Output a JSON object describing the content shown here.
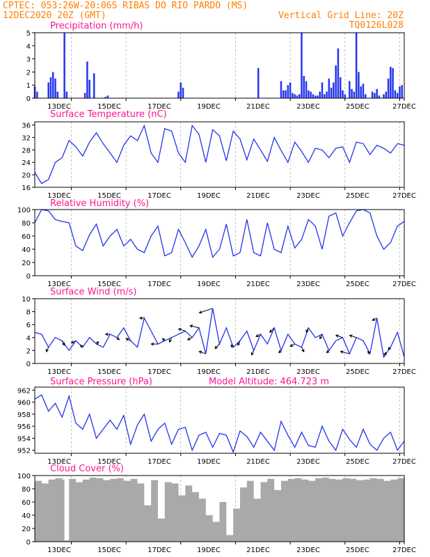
{
  "header": {
    "line1_left": "CPTEC:   053:26W-20:06S  RIBAS DO RIO PARDO (MS)",
    "line2_left": "12DEC2020 20Z (GMT)",
    "line1_right": "Vertical Grid Line: 20Z",
    "line2_right": "TQ0126L028"
  },
  "colors": {
    "series": "#2233ee",
    "cloud": "#a9a9a9",
    "arrows": "#000000",
    "header": "#ff7f00",
    "titles": "#ff1493"
  },
  "x_tick_labels": [
    "13DEC",
    "15DEC",
    "17DEC",
    "19DEC",
    "21DEC",
    "23DEC",
    "25DEC",
    "27DEC"
  ],
  "chart_data": [
    {
      "type": "bar",
      "title": "Precipitation (mm/h)",
      "x_unit": "hours since 12DEC2020 20Z",
      "ylim": [
        0,
        5
      ],
      "yticks": [
        0,
        1,
        2,
        3,
        4,
        5
      ],
      "points": [
        [
          0,
          0.9
        ],
        [
          1,
          0.5
        ],
        [
          6,
          1.2
        ],
        [
          7,
          1.6
        ],
        [
          8,
          2.0
        ],
        [
          9,
          1.5
        ],
        [
          10,
          0.5
        ],
        [
          13,
          5.0
        ],
        [
          14,
          0.5
        ],
        [
          22,
          0.4
        ],
        [
          23,
          2.8
        ],
        [
          24,
          1.4
        ],
        [
          26,
          1.9
        ],
        [
          31,
          0.1
        ],
        [
          32,
          0.2
        ],
        [
          63,
          0.5
        ],
        [
          64,
          1.2
        ],
        [
          65,
          0.8
        ],
        [
          98,
          2.3
        ],
        [
          108,
          1.3
        ],
        [
          109,
          0.6
        ],
        [
          110,
          0.6
        ],
        [
          111,
          1.0
        ],
        [
          112,
          1.2
        ],
        [
          113,
          0.4
        ],
        [
          114,
          0.3
        ],
        [
          115,
          0.2
        ],
        [
          116,
          0.3
        ],
        [
          117,
          5.0
        ],
        [
          118,
          1.7
        ],
        [
          119,
          1.3
        ],
        [
          120,
          0.6
        ],
        [
          121,
          0.5
        ],
        [
          122,
          0.3
        ],
        [
          123,
          0.2
        ],
        [
          124,
          0.2
        ],
        [
          125,
          0.5
        ],
        [
          126,
          1.2
        ],
        [
          127,
          0.3
        ],
        [
          128,
          0.5
        ],
        [
          129,
          1.5
        ],
        [
          130,
          0.8
        ],
        [
          131,
          1.2
        ],
        [
          132,
          2.5
        ],
        [
          133,
          3.8
        ],
        [
          134,
          1.6
        ],
        [
          135,
          0.6
        ],
        [
          136,
          0.3
        ],
        [
          138,
          1.3
        ],
        [
          139,
          0.7
        ],
        [
          140,
          0.5
        ],
        [
          141,
          5.0
        ],
        [
          142,
          2.0
        ],
        [
          143,
          0.9
        ],
        [
          144,
          1.1
        ],
        [
          145,
          0.3
        ],
        [
          148,
          0.5
        ],
        [
          149,
          0.4
        ],
        [
          150,
          0.7
        ],
        [
          151,
          0.2
        ],
        [
          153,
          0.3
        ],
        [
          154,
          0.5
        ],
        [
          155,
          1.5
        ],
        [
          156,
          2.4
        ],
        [
          157,
          2.3
        ],
        [
          158,
          0.6
        ],
        [
          159,
          0.4
        ],
        [
          160,
          0.9
        ],
        [
          161,
          1.0
        ]
      ]
    },
    {
      "type": "line",
      "title": "Surface Temperature (nC)",
      "x_unit": "hours since 12DEC2020 20Z",
      "ylim": [
        16,
        37
      ],
      "yticks": [
        16,
        20,
        24,
        28,
        32,
        36
      ],
      "x": [
        0,
        3,
        6,
        9,
        12,
        15,
        18,
        21,
        24,
        27,
        30,
        33,
        36,
        39,
        42,
        45,
        48,
        51,
        54,
        57,
        60,
        63,
        66,
        69,
        72,
        75,
        78,
        81,
        84,
        87,
        90,
        93,
        96,
        99,
        102,
        105,
        108,
        111,
        114,
        117,
        120,
        123,
        126,
        129,
        132,
        135,
        138,
        141,
        144,
        147,
        150,
        153,
        156,
        159,
        162
      ],
      "values": [
        20.8,
        17.2,
        18.5,
        24.0,
        25.5,
        31.0,
        29.0,
        26.0,
        30.5,
        33.5,
        30.0,
        27.0,
        24.0,
        29.5,
        32.5,
        31.0,
        35.8,
        27.0,
        24.0,
        34.8,
        34.0,
        27.0,
        24.0,
        35.8,
        33.0,
        24.0,
        34.5,
        32.5,
        24.5,
        34.0,
        31.5,
        24.8,
        31.5,
        28.0,
        24.3,
        32.0,
        27.8,
        24.0,
        30.5,
        27.5,
        24.0,
        28.5,
        28.0,
        25.5,
        28.5,
        29.0,
        24.0,
        30.5,
        30.0,
        26.5,
        29.5,
        28.5,
        27.0,
        30.0,
        29.5
      ]
    },
    {
      "type": "line",
      "title": "Relative Humidity (%)",
      "x_unit": "hours since 12DEC2020 20Z",
      "ylim": [
        0,
        100
      ],
      "yticks": [
        0,
        20,
        40,
        60,
        80,
        100
      ],
      "x": [
        0,
        3,
        6,
        9,
        12,
        15,
        18,
        21,
        24,
        27,
        30,
        33,
        36,
        39,
        42,
        45,
        48,
        51,
        54,
        57,
        60,
        63,
        66,
        69,
        72,
        75,
        78,
        81,
        84,
        87,
        90,
        93,
        96,
        99,
        102,
        105,
        108,
        111,
        114,
        117,
        120,
        123,
        126,
        129,
        132,
        135,
        138,
        141,
        144,
        147,
        150,
        153,
        156,
        159,
        162
      ],
      "values": [
        80,
        100,
        98,
        85,
        82,
        80,
        45,
        38,
        62,
        78,
        45,
        60,
        70,
        45,
        55,
        40,
        35,
        60,
        75,
        30,
        35,
        70,
        50,
        28,
        45,
        70,
        28,
        40,
        78,
        30,
        35,
        85,
        35,
        30,
        80,
        40,
        35,
        75,
        42,
        55,
        85,
        75,
        40,
        90,
        95,
        60,
        80,
        98,
        100,
        95,
        60,
        40,
        50,
        75,
        82
      ]
    },
    {
      "type": "line",
      "title": "Surface Wind (m/s)",
      "x_unit": "hours since 12DEC2020 20Z",
      "ylim": [
        0,
        10
      ],
      "yticks": [
        0,
        2,
        4,
        6,
        8,
        10
      ],
      "x": [
        0,
        3,
        6,
        9,
        12,
        15,
        18,
        21,
        24,
        27,
        30,
        33,
        36,
        39,
        42,
        45,
        48,
        51,
        54,
        57,
        60,
        63,
        66,
        69,
        72,
        75,
        78,
        81,
        84,
        87,
        90,
        93,
        96,
        99,
        102,
        105,
        108,
        111,
        114,
        117,
        120,
        123,
        126,
        129,
        132,
        135,
        138,
        141,
        144,
        147,
        150,
        153,
        156,
        159,
        162
      ],
      "values": [
        4.8,
        4.5,
        2.5,
        4.0,
        3.5,
        2.0,
        3.5,
        2.5,
        4.0,
        3.0,
        2.5,
        4.5,
        4.0,
        5.5,
        3.5,
        2.5,
        7.0,
        5.0,
        3.0,
        3.5,
        4.0,
        4.5,
        5.0,
        4.0,
        5.5,
        1.5,
        8.5,
        3.0,
        5.5,
        2.5,
        3.5,
        5.0,
        2.0,
        4.5,
        3.0,
        5.5,
        2.0,
        4.5,
        3.0,
        2.5,
        5.5,
        4.0,
        4.5,
        2.0,
        3.5,
        4.0,
        1.5,
        4.0,
        3.5,
        1.5,
        7.0,
        1.0,
        2.5,
        4.8,
        1.0
      ],
      "arrows": [
        [
          6,
          -1,
          -2
        ],
        [
          12,
          1,
          -2
        ],
        [
          18,
          -2,
          -1
        ],
        [
          21,
          -1,
          1
        ],
        [
          27,
          1,
          1
        ],
        [
          33,
          -2,
          0
        ],
        [
          36,
          1,
          -1
        ],
        [
          42,
          -2,
          1
        ],
        [
          48,
          -2,
          0
        ],
        [
          54,
          -3,
          0
        ],
        [
          57,
          -1,
          1
        ],
        [
          60,
          -1,
          -2
        ],
        [
          66,
          -3,
          1
        ],
        [
          69,
          -2,
          -1
        ],
        [
          72,
          -4,
          1
        ],
        [
          75,
          -3,
          1
        ],
        [
          78,
          -6,
          -2
        ],
        [
          81,
          -2,
          -2
        ],
        [
          87,
          -1,
          1
        ],
        [
          90,
          -1,
          -2
        ],
        [
          96,
          -1,
          -2
        ],
        [
          99,
          -2,
          -1
        ],
        [
          105,
          -2,
          -2
        ],
        [
          108,
          -1,
          -1
        ],
        [
          114,
          -2,
          -1
        ],
        [
          117,
          1,
          -2
        ],
        [
          120,
          -1,
          -2
        ],
        [
          126,
          -1,
          -2
        ],
        [
          129,
          -1,
          -1
        ],
        [
          135,
          -3,
          1
        ],
        [
          138,
          -4,
          1
        ],
        [
          141,
          -3,
          1
        ],
        [
          147,
          -1,
          1
        ],
        [
          150,
          -2,
          -1
        ],
        [
          153,
          1,
          2
        ],
        [
          156,
          -1,
          -1
        ]
      ]
    },
    {
      "type": "line",
      "title": "Surface Pressure (hPa)",
      "annotation": "Model Altitude: 464.723 m",
      "x_unit": "hours since 12DEC2020 20Z",
      "ylim": [
        951.5,
        962.5
      ],
      "yticks": [
        952,
        954,
        956,
        958,
        960,
        962
      ],
      "x": [
        0,
        3,
        6,
        9,
        12,
        15,
        18,
        21,
        24,
        27,
        30,
        33,
        36,
        39,
        42,
        45,
        48,
        51,
        54,
        57,
        60,
        63,
        66,
        69,
        72,
        75,
        78,
        81,
        84,
        87,
        90,
        93,
        96,
        99,
        102,
        105,
        108,
        111,
        114,
        117,
        120,
        123,
        126,
        129,
        132,
        135,
        138,
        141,
        144,
        147,
        150,
        153,
        156,
        159,
        162
      ],
      "values": [
        960.5,
        961.2,
        958.5,
        959.8,
        957.5,
        961.0,
        956.5,
        955.5,
        958.0,
        954.0,
        955.5,
        957.0,
        955.5,
        957.8,
        953.0,
        956.2,
        958.0,
        953.5,
        955.5,
        956.5,
        953.0,
        955.5,
        955.8,
        952.0,
        954.5,
        955.0,
        952.5,
        954.8,
        954.5,
        951.7,
        955.2,
        954.3,
        952.5,
        955.0,
        953.5,
        952.0,
        956.8,
        954.5,
        952.5,
        955.0,
        952.8,
        952.5,
        956.0,
        953.5,
        952.0,
        955.5,
        953.8,
        952.5,
        955.5,
        953.0,
        952.0,
        954.0,
        955.0,
        952.0,
        953.5
      ]
    },
    {
      "type": "area",
      "title": "Cloud Cover (%)",
      "x_unit": "hours since 12DEC2020 20Z",
      "ylim": [
        0,
        100
      ],
      "yticks": [
        0,
        20,
        40,
        60,
        80,
        100
      ],
      "x": [
        0,
        3,
        6,
        9,
        12,
        13,
        15,
        18,
        21,
        24,
        27,
        30,
        33,
        36,
        39,
        42,
        45,
        48,
        51,
        54,
        57,
        60,
        63,
        66,
        69,
        72,
        75,
        78,
        81,
        84,
        87,
        90,
        93,
        96,
        99,
        102,
        105,
        108,
        111,
        114,
        117,
        120,
        123,
        126,
        129,
        132,
        135,
        138,
        141,
        144,
        147,
        150,
        153,
        156,
        159,
        162
      ],
      "values": [
        92,
        88,
        94,
        96,
        94,
        2,
        95,
        90,
        94,
        97,
        96,
        93,
        95,
        96,
        92,
        95,
        88,
        55,
        93,
        35,
        90,
        88,
        70,
        85,
        75,
        65,
        40,
        30,
        60,
        10,
        50,
        82,
        92,
        65,
        90,
        95,
        78,
        92,
        95,
        96,
        94,
        92,
        96,
        97,
        95,
        94,
        96,
        95,
        93,
        94,
        96,
        95,
        92,
        94,
        96,
        95
      ]
    }
  ]
}
